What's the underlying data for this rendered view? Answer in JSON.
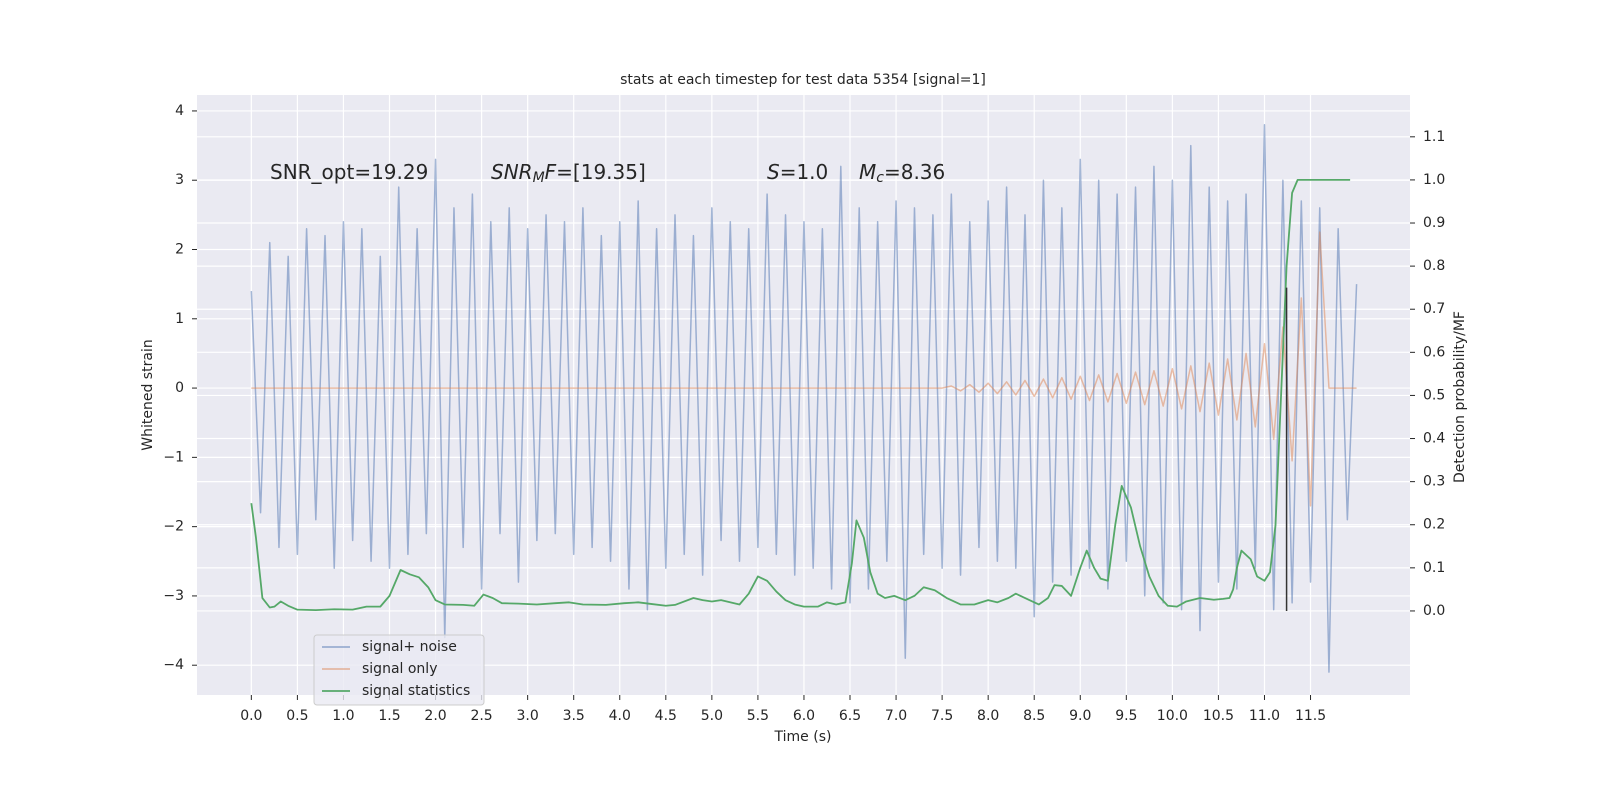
{
  "chart_data": {
    "type": "line",
    "title": "stats at each timestep for test data 5354 [signal=1]",
    "xlabel": "Time (s)",
    "ylabel": "Whitened strain",
    "y2label": "Detection probability/MF",
    "background": "#eaeaf2",
    "grid": true,
    "legend": "lower left",
    "xlim": [
      -0.59,
      12.58
    ],
    "ylim": [
      -4.43,
      4.23
    ],
    "y2lim": [
      -0.195,
      1.197
    ],
    "xticks": [
      {
        "value": 0,
        "label": "0.0"
      },
      {
        "value": 0.5,
        "label": "0.5"
      },
      {
        "value": 1,
        "label": "1.0"
      },
      {
        "value": 1.5,
        "label": "1.5"
      },
      {
        "value": 2,
        "label": "2.0"
      },
      {
        "value": 2.5,
        "label": "2.5"
      },
      {
        "value": 3,
        "label": "3.0"
      },
      {
        "value": 3.5,
        "label": "3.5"
      },
      {
        "value": 4,
        "label": "4.0"
      },
      {
        "value": 4.5,
        "label": "4.5"
      },
      {
        "value": 5,
        "label": "5.0"
      },
      {
        "value": 5.5,
        "label": "5.5"
      },
      {
        "value": 6,
        "label": "6.0"
      },
      {
        "value": 6.5,
        "label": "6.5"
      },
      {
        "value": 7,
        "label": "7.0"
      },
      {
        "value": 7.5,
        "label": "7.5"
      },
      {
        "value": 8,
        "label": "8.0"
      },
      {
        "value": 8.5,
        "label": "8.5"
      },
      {
        "value": 9,
        "label": "9.0"
      },
      {
        "value": 9.5,
        "label": "9.5"
      },
      {
        "value": 10,
        "label": "10.0"
      },
      {
        "value": 10.5,
        "label": "10.5"
      },
      {
        "value": 11,
        "label": "11.0"
      },
      {
        "value": 11.5,
        "label": "11.5"
      }
    ],
    "yticks": [
      {
        "value": -4,
        "label": "−4"
      },
      {
        "value": -3,
        "label": "−3"
      },
      {
        "value": -2,
        "label": "−2"
      },
      {
        "value": -1,
        "label": "−1"
      },
      0,
      1,
      2,
      3,
      4
    ],
    "y2ticks": [
      {
        "value": 0,
        "label": "0.0"
      },
      {
        "value": 0.1,
        "label": "0.1"
      },
      {
        "value": 0.2,
        "label": "0.2"
      },
      {
        "value": 0.3,
        "label": "0.3"
      },
      {
        "value": 0.4,
        "label": "0.4"
      },
      {
        "value": 0.5,
        "label": "0.5"
      },
      {
        "value": 0.6,
        "label": "0.6"
      },
      {
        "value": 0.7,
        "label": "0.7"
      },
      {
        "value": 0.8,
        "label": "0.8"
      },
      {
        "value": 0.9,
        "label": "0.9"
      },
      {
        "value": 1,
        "label": "1.0"
      },
      {
        "value": 1.1,
        "label": "1.1"
      }
    ],
    "annotations": [
      [
        {
          "text": "SNR_opt=19.29"
        }
      ],
      [
        {
          "text": "SNR",
          "italic": true
        },
        {
          "text": "M",
          "italic": true,
          "sub": true
        },
        {
          "text": "F",
          "italic": true
        },
        {
          "text": "=[19.35]"
        }
      ],
      [
        {
          "text": "S",
          "italic": true
        },
        {
          "text": "=1.0"
        }
      ],
      [
        {
          "text": "M",
          "italic": true
        },
        {
          "text": "c",
          "italic": true,
          "sub": true
        },
        {
          "text": "=8.36"
        }
      ]
    ],
    "series": [
      {
        "name": "signal+ noise",
        "color": "#4c72b0",
        "opacity": 0.5,
        "x": [
          0,
          0.1,
          0.2,
          0.3,
          0.4,
          0.5,
          0.6,
          0.7,
          0.8,
          0.9,
          1,
          1.1,
          1.2,
          1.3,
          1.4,
          1.5,
          1.6,
          1.7,
          1.8,
          1.9,
          2,
          2.1,
          2.2,
          2.3,
          2.4,
          2.5,
          2.6,
          2.7,
          2.8,
          2.9,
          3,
          3.1,
          3.2,
          3.3,
          3.4,
          3.5,
          3.6,
          3.7,
          3.8,
          3.9,
          4,
          4.1,
          4.2,
          4.3,
          4.4,
          4.5,
          4.6,
          4.7,
          4.8,
          4.9,
          5,
          5.1,
          5.2,
          5.3,
          5.4,
          5.5,
          5.6,
          5.7,
          5.8,
          5.9,
          6,
          6.1,
          6.2,
          6.3,
          6.4,
          6.5,
          6.6,
          6.7,
          6.8,
          6.9,
          7,
          7.1,
          7.2,
          7.3,
          7.4,
          7.5,
          7.6,
          7.7,
          7.8,
          7.9,
          8,
          8.1,
          8.2,
          8.3,
          8.4,
          8.5,
          8.6,
          8.7,
          8.8,
          8.9,
          9,
          9.1,
          9.2,
          9.3,
          9.4,
          9.5,
          9.6,
          9.7,
          9.8,
          9.9,
          10,
          10.1,
          10.2,
          10.3,
          10.4,
          10.5,
          10.6,
          10.7,
          10.8,
          10.9,
          11,
          11.1,
          11.2,
          11.3,
          11.4,
          11.5,
          11.6,
          11.7,
          11.8,
          11.9,
          12
        ],
        "values": [
          1.4,
          -1.8,
          2.1,
          -2.3,
          1.9,
          -2.4,
          2.3,
          -1.9,
          2.2,
          -2.6,
          2.4,
          -2.2,
          2.3,
          -2.5,
          1.9,
          -2.6,
          2.9,
          -2.4,
          2.3,
          -2.1,
          3.3,
          -3.6,
          2.6,
          -2.3,
          2.8,
          -2.9,
          2.4,
          -2.1,
          2.6,
          -2.8,
          2.3,
          -2.2,
          2.5,
          -2.1,
          2.4,
          -2.4,
          2.6,
          -2.3,
          2.2,
          -2.5,
          2.4,
          -2.9,
          2.7,
          -3.2,
          2.3,
          -2.6,
          2.5,
          -2.4,
          2.2,
          -2.7,
          2.6,
          -2.2,
          2.4,
          -2.5,
          2.3,
          -2.3,
          2.8,
          -2.4,
          2.5,
          -2.7,
          2.4,
          -2.6,
          2.3,
          -2.9,
          3.2,
          -3.1,
          2.6,
          -2.9,
          2.4,
          -2.5,
          2.7,
          -3.9,
          2.6,
          -2.4,
          2.5,
          -2.6,
          2.8,
          -2.7,
          2.4,
          -2.3,
          2.7,
          -2.5,
          2.9,
          -2.6,
          2.5,
          -3.3,
          3.0,
          -2.8,
          2.6,
          -2.7,
          3.3,
          -2.6,
          3.0,
          -2.9,
          2.8,
          -2.5,
          2.9,
          -3.0,
          3.2,
          -3.1,
          3.0,
          -3.2,
          3.5,
          -3.5,
          2.9,
          -2.8,
          2.7,
          -2.9,
          2.8,
          -2.6,
          3.8,
          -3.2,
          3.0,
          -3.1,
          2.7,
          -2.8,
          2.6,
          -4.1,
          2.3,
          -1.9,
          1.5
        ]
      },
      {
        "name": "signal only",
        "color": "#dd8452",
        "opacity": 0.5,
        "x": [
          0,
          7.5,
          7.6,
          7.7,
          7.8,
          7.9,
          8,
          8.1,
          8.2,
          8.3,
          8.4,
          8.5,
          8.6,
          8.7,
          8.8,
          8.9,
          9,
          9.1,
          9.2,
          9.3,
          9.4,
          9.5,
          9.6,
          9.7,
          9.8,
          9.9,
          10,
          10.1,
          10.2,
          10.3,
          10.4,
          10.5,
          10.6,
          10.7,
          10.8,
          10.9,
          11,
          11.1,
          11.2,
          11.3,
          11.4,
          11.5,
          11.6,
          11.7,
          12
        ],
        "values": [
          0,
          0,
          0.03,
          -0.04,
          0.05,
          -0.06,
          0.07,
          -0.08,
          0.09,
          -0.1,
          0.11,
          -0.12,
          0.13,
          -0.14,
          0.15,
          -0.16,
          0.17,
          -0.18,
          0.19,
          -0.2,
          0.21,
          -0.22,
          0.23,
          -0.24,
          0.25,
          -0.26,
          0.28,
          -0.3,
          0.32,
          -0.34,
          0.36,
          -0.39,
          0.42,
          -0.46,
          0.5,
          -0.56,
          0.64,
          -0.74,
          0.88,
          -1.05,
          1.3,
          -1.7,
          2.25,
          0,
          0
        ]
      },
      {
        "name": "signal statistics",
        "color": "#55a868",
        "opacity": 1,
        "axis": "y2",
        "x": [
          0,
          0.05,
          0.12,
          0.2,
          0.25,
          0.32,
          0.4,
          0.5,
          0.7,
          0.9,
          1.1,
          1.25,
          1.4,
          1.5,
          1.62,
          1.72,
          1.82,
          1.92,
          2,
          2.1,
          2.3,
          2.42,
          2.52,
          2.62,
          2.72,
          2.9,
          3.1,
          3.3,
          3.45,
          3.6,
          3.85,
          4.05,
          4.2,
          4.35,
          4.5,
          4.6,
          4.8,
          4.9,
          5,
          5.1,
          5.3,
          5.4,
          5.5,
          5.6,
          5.7,
          5.8,
          5.9,
          6,
          6.15,
          6.25,
          6.35,
          6.45,
          6.52,
          6.57,
          6.65,
          6.72,
          6.8,
          6.88,
          6.98,
          7.1,
          7.2,
          7.3,
          7.42,
          7.55,
          7.7,
          7.85,
          8,
          8.1,
          8.22,
          8.3,
          8.45,
          8.55,
          8.65,
          8.72,
          8.8,
          8.9,
          9,
          9.07,
          9.15,
          9.22,
          9.3,
          9.38,
          9.45,
          9.55,
          9.65,
          9.75,
          9.85,
          9.95,
          10.05,
          10.15,
          10.3,
          10.45,
          10.55,
          10.62,
          10.66,
          10.7,
          10.75,
          10.85,
          10.92,
          11,
          11.06,
          11.12,
          11.18,
          11.24,
          11.3,
          11.36,
          11.6,
          11.93
        ],
        "values": [
          0.25,
          0.17,
          0.03,
          0.008,
          0.01,
          0.022,
          0.012,
          0.003,
          0.002,
          0.004,
          0.003,
          0.01,
          0.01,
          0.035,
          0.095,
          0.085,
          0.078,
          0.055,
          0.025,
          0.015,
          0.014,
          0.012,
          0.038,
          0.03,
          0.018,
          0.017,
          0.015,
          0.018,
          0.02,
          0.015,
          0.014,
          0.018,
          0.02,
          0.016,
          0.012,
          0.014,
          0.03,
          0.025,
          0.022,
          0.025,
          0.015,
          0.04,
          0.08,
          0.07,
          0.045,
          0.025,
          0.015,
          0.01,
          0.01,
          0.02,
          0.015,
          0.02,
          0.11,
          0.21,
          0.17,
          0.09,
          0.04,
          0.03,
          0.035,
          0.025,
          0.035,
          0.055,
          0.048,
          0.03,
          0.015,
          0.015,
          0.025,
          0.02,
          0.03,
          0.04,
          0.025,
          0.015,
          0.03,
          0.06,
          0.058,
          0.035,
          0.1,
          0.14,
          0.1,
          0.075,
          0.07,
          0.2,
          0.29,
          0.24,
          0.15,
          0.08,
          0.035,
          0.012,
          0.01,
          0.022,
          0.03,
          0.026,
          0.028,
          0.03,
          0.05,
          0.1,
          0.14,
          0.12,
          0.08,
          0.07,
          0.09,
          0.2,
          0.5,
          0.8,
          0.97,
          1.0,
          1.0,
          1.0
        ]
      }
    ],
    "vline": {
      "x": 11.24,
      "y2": [
        0,
        0.75
      ],
      "color": "#333333"
    }
  }
}
